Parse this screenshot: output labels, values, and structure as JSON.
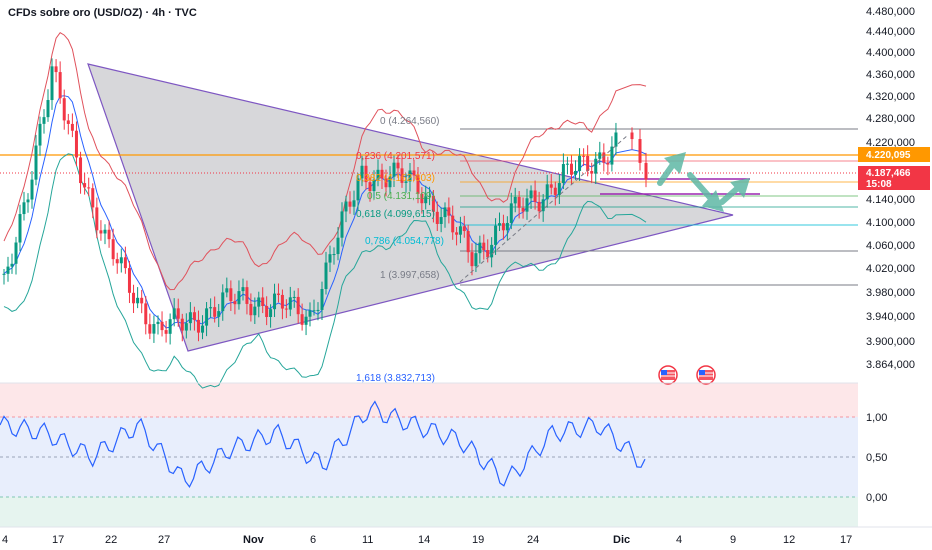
{
  "header": {
    "title": "CFDs sobre oro (USD/OZ) · 4h · TVC"
  },
  "colors": {
    "up": "#089981",
    "down": "#f23645",
    "bb_upper": "#e0525c",
    "bb_lower": "#26a69a",
    "bb_mid": "#2962ff",
    "triangle_stroke": "#7e57c2",
    "triangle_fill": "#a6a6ae",
    "fib_lines": "#787b86",
    "orange_level": "#ff9800",
    "purple_level": "#9c27b0",
    "arrow": "#5fb8a5",
    "rsi": "#2962ff",
    "price_badge": "#f23645",
    "orange_badge": "#ff9800"
  },
  "price_axis": {
    "labels": [
      "4.480,000",
      "4.440,000",
      "4.400,000",
      "4.360,000",
      "4.320,000",
      "4.280,000",
      "4.220,000",
      "4.187,466",
      "15:08",
      "4.140,000",
      "4.100,000",
      "4.060,000",
      "4.020,000",
      "3.980,000",
      "3.940,000",
      "3.900,000",
      "3.864,000"
    ]
  },
  "osc_axis": {
    "labels": [
      "1,00",
      "0,50",
      "0,00"
    ]
  },
  "time_axis": {
    "labels": [
      "4",
      "17",
      "22",
      "27",
      "Nov",
      "6",
      "11",
      "14",
      "19",
      "24",
      "Dic",
      "4",
      "9",
      "12",
      "17"
    ]
  },
  "badges": {
    "orange": "4.220,095",
    "price": "4.187,466",
    "countdown": "15:08"
  },
  "fib": [
    {
      "ratio": "0",
      "price": "4.264,560",
      "label": "0 (4.264,560)"
    },
    {
      "ratio": "0,236",
      "price": "4.201,571",
      "label": "0,236 (4.201,571)"
    },
    {
      "ratio": "0,382",
      "price": "4.162,603",
      "label": "0,382 (4.162,603)"
    },
    {
      "ratio": "0,5",
      "price": "4.131,109",
      "label": "0,5 (4.131,109)"
    },
    {
      "ratio": "0,618",
      "price": "4.099,615",
      "label": "0,618 (4.099,615)"
    },
    {
      "ratio": "0,786",
      "price": "4.054,778",
      "label": "0,786 (4.054,778)"
    },
    {
      "ratio": "1",
      "price": "3.997,658",
      "label": "1 (3.997,658)"
    },
    {
      "ratio": "1,618",
      "price": "3.832,713",
      "label": "1,618 (3.832,713)"
    }
  ],
  "chart_data": {
    "type": "line",
    "title": "CFDs sobre oro (USD/OZ) · 4h · TVC",
    "x": [
      "4",
      "17",
      "22",
      "27",
      "Nov",
      "6",
      "11",
      "14",
      "19",
      "24",
      "Dic"
    ],
    "series": [
      {
        "name": "",
        "values": [
          4000,
          4360,
          4080,
          3930,
          3990,
          3960,
          4200,
          4180,
          4060,
          4150,
          4250
        ]
      }
    ],
    "ylim": [
      3864,
      4480
    ],
    "oscillator": {
      "ylim": [
        -0.3,
        1.4
      ],
      "levels": [
        0,
        0.5,
        1
      ],
      "values": [
        0.9,
        0.8,
        0.5,
        0.9,
        0.2,
        0.6,
        0.8,
        0.4,
        1.1,
        0.9,
        0.7,
        0.2,
        0.8,
        0.9,
        0.4
      ]
    }
  }
}
